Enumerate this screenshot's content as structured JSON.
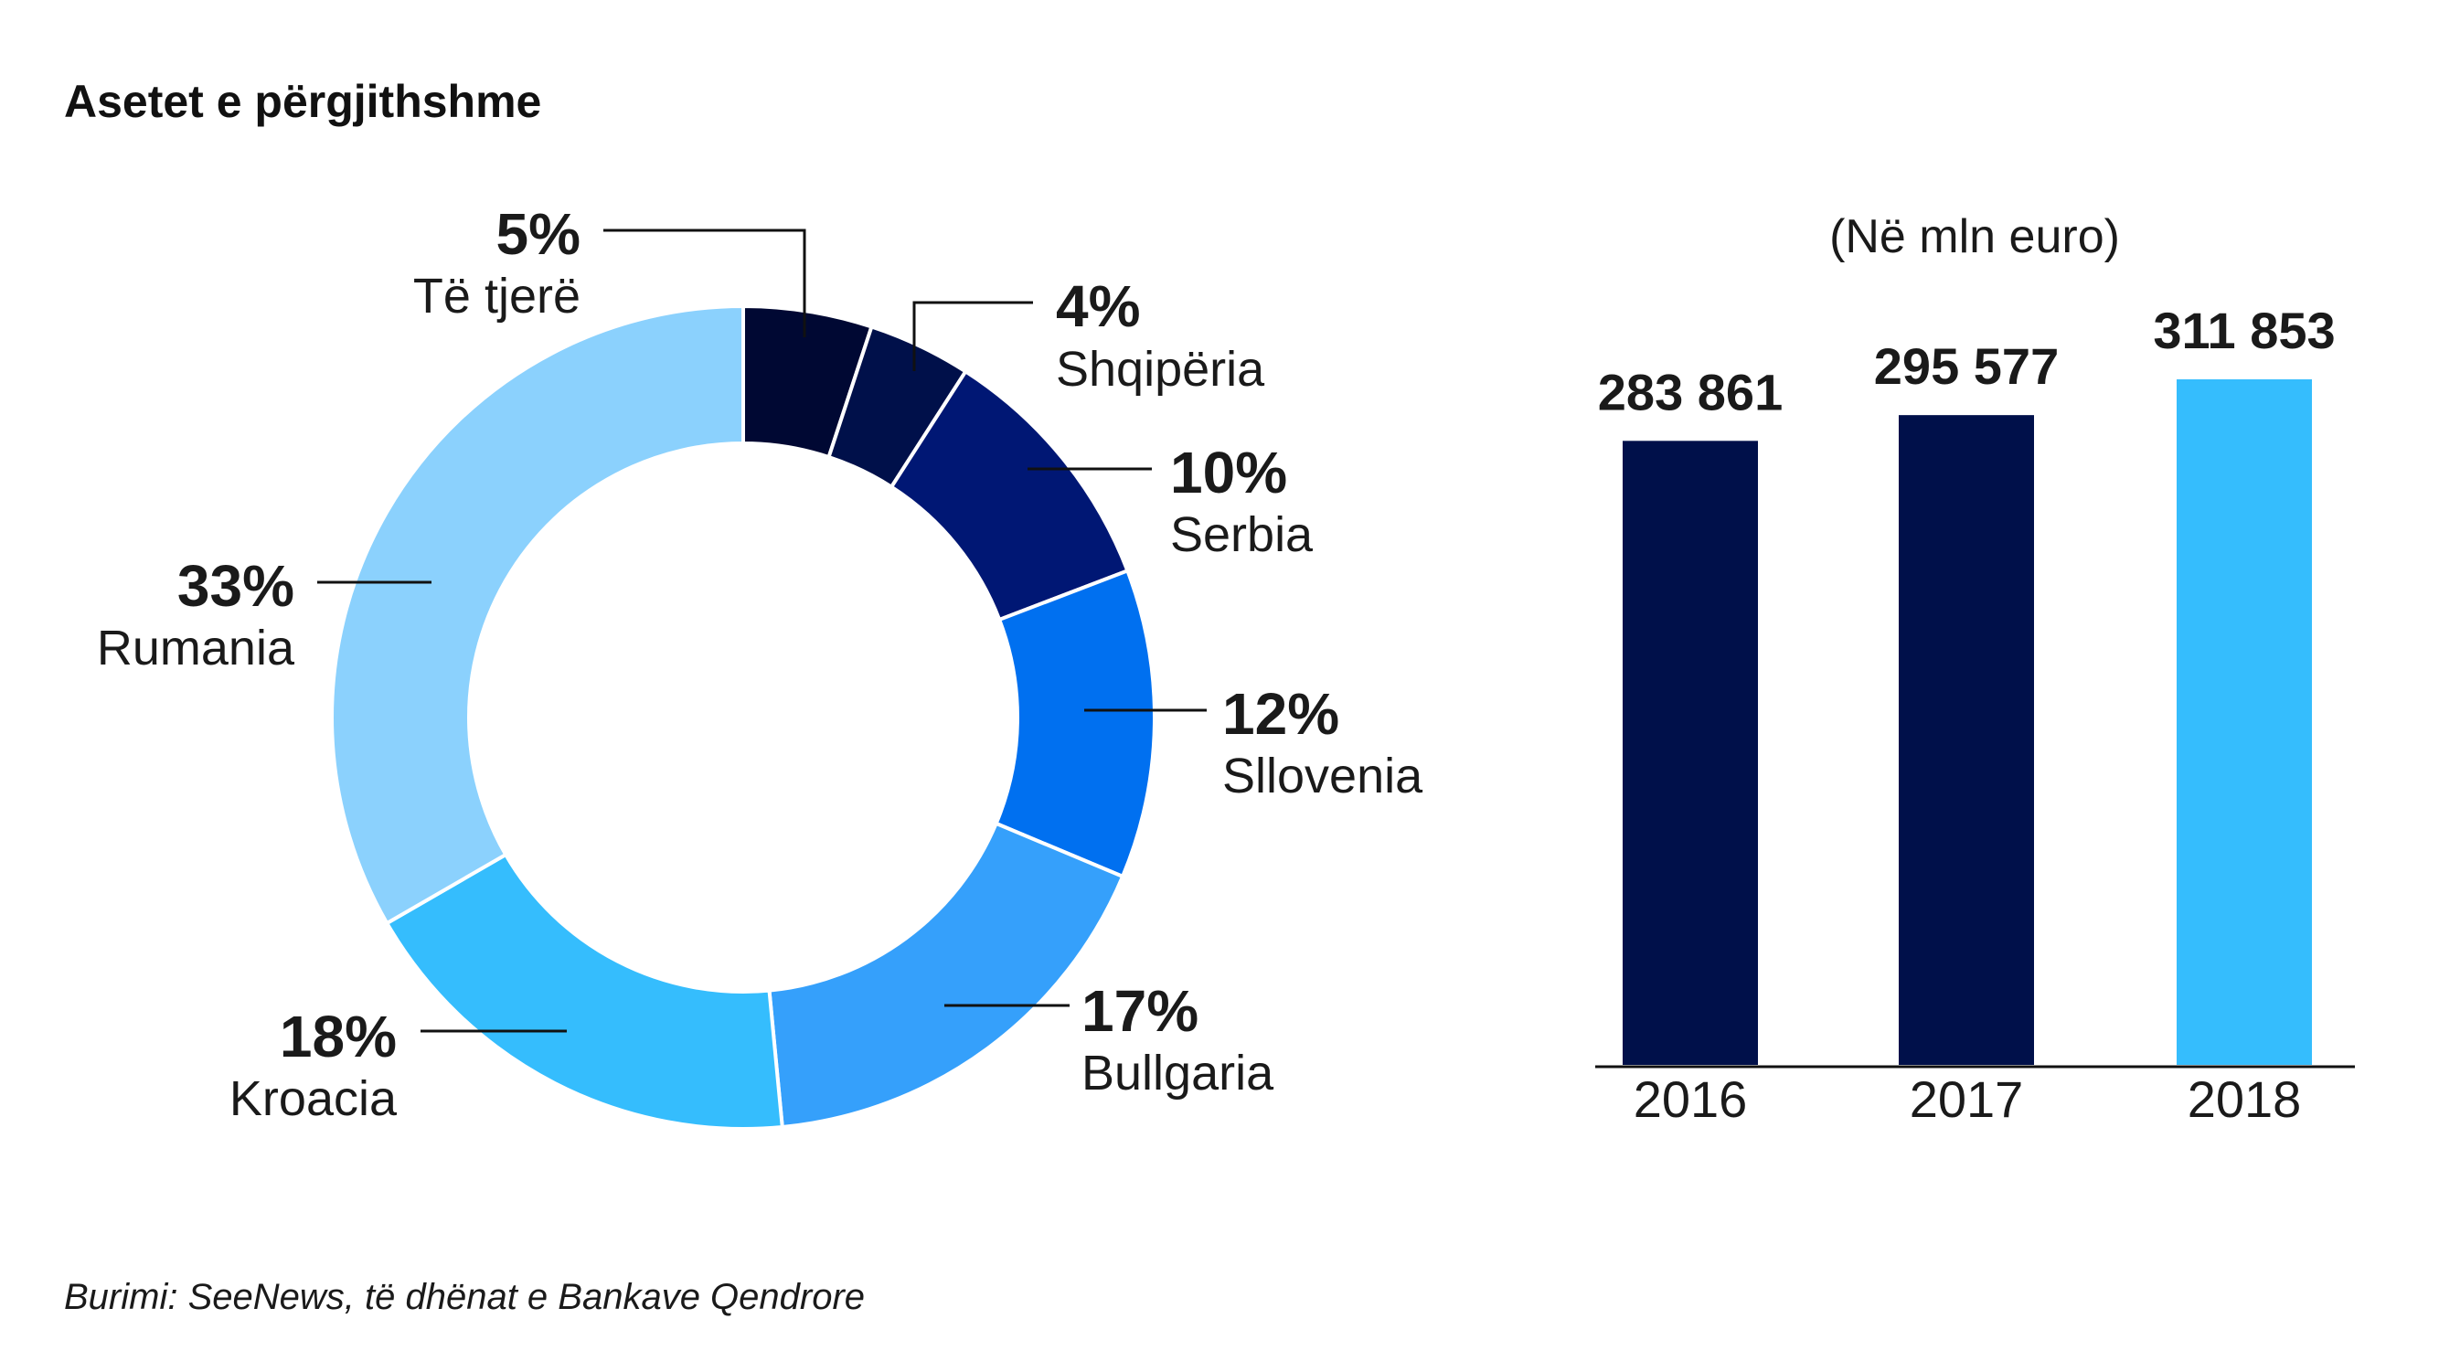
{
  "title": "Asetet e përgjithshme",
  "source": "Burimi: SeeNews, të dhënat e Bankave Qendrore",
  "chart_data": [
    {
      "type": "pie",
      "variant": "donut",
      "slices": [
        {
          "label": "Të tjerë",
          "value": 5,
          "display": "5%",
          "color": "#000833"
        },
        {
          "label": "Shqipëria",
          "value": 4,
          "display": "4%",
          "color": "#00104a"
        },
        {
          "label": "Serbia",
          "value": 10,
          "display": "10%",
          "color": "#001774"
        },
        {
          "label": "Sllovenia",
          "value": 12,
          "display": "12%",
          "color": "#0070f0"
        },
        {
          "label": "Bullgaria",
          "value": 17,
          "display": "17%",
          "color": "#35a0fb"
        },
        {
          "label": "Kroacia",
          "value": 18,
          "display": "18%",
          "color": "#35bdfd"
        },
        {
          "label": "Rumania",
          "value": 33,
          "display": "33%",
          "color": "#8bd1fd"
        }
      ]
    },
    {
      "type": "bar",
      "title": "(Në mln euro)",
      "categories": [
        "2016",
        "2017",
        "2018"
      ],
      "values": [
        283861,
        295577,
        311853
      ],
      "value_labels": [
        "283 861",
        "295 577",
        "311 853"
      ],
      "colors": [
        "#00104a",
        "#00104a",
        "#35bdfd"
      ],
      "ylim": [
        0,
        311853
      ]
    }
  ]
}
